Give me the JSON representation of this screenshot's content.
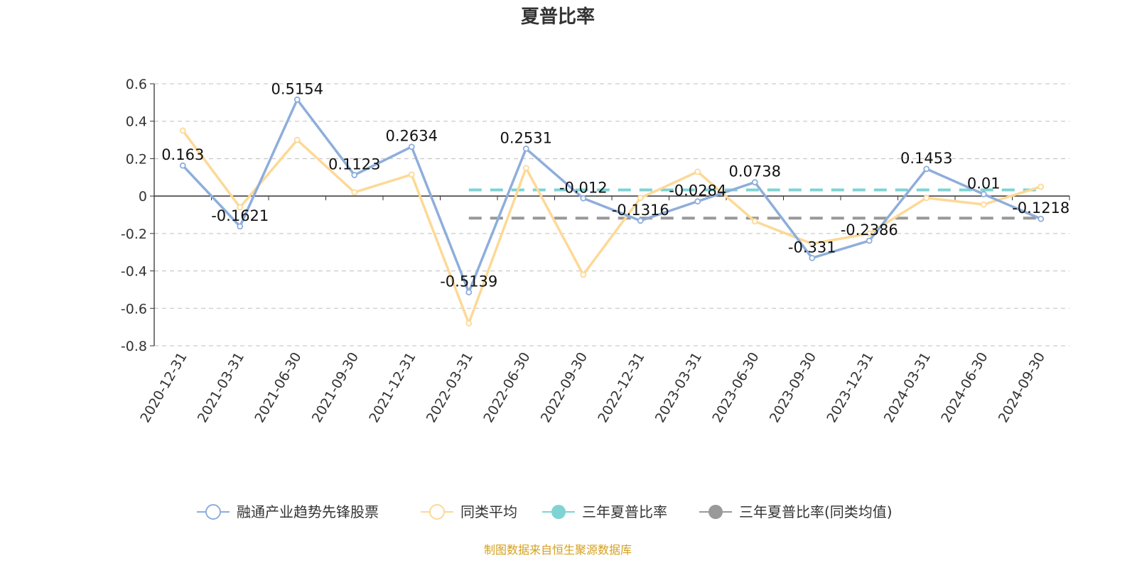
{
  "chart_data": {
    "type": "line",
    "title": "夏普比率",
    "categories": [
      "2020-12-31",
      "2021-03-31",
      "2021-06-30",
      "2021-09-30",
      "2021-12-31",
      "2022-03-31",
      "2022-06-30",
      "2022-09-30",
      "2022-12-31",
      "2023-03-31",
      "2023-06-30",
      "2023-09-30",
      "2023-12-31",
      "2024-03-31",
      "2024-06-30",
      "2024-09-30"
    ],
    "ylim": [
      -0.8,
      0.6
    ],
    "yticks": [
      "0.6",
      "0.4",
      "0.2",
      "0",
      "-0.2",
      "-0.4",
      "-0.6",
      "-0.8"
    ],
    "grid": true,
    "legend_position": "bottom",
    "series": [
      {
        "name": "融通产业趋势先锋股票",
        "color": "#8eaedb",
        "labels": true,
        "values": [
          0.163,
          -0.1621,
          0.5154,
          0.1123,
          0.2634,
          -0.5139,
          0.2531,
          -0.012,
          -0.1316,
          -0.0284,
          0.0738,
          -0.331,
          -0.2386,
          0.1453,
          0.01,
          -0.1218
        ]
      },
      {
        "name": "同类平均",
        "color": "#fdd996",
        "labels": false,
        "values": [
          0.35,
          -0.06,
          0.3,
          0.02,
          0.115,
          -0.68,
          0.15,
          -0.42,
          -0.01,
          0.13,
          -0.135,
          -0.255,
          -0.2,
          -0.01,
          -0.045,
          0.05
        ]
      },
      {
        "name": "三年夏普比率",
        "color": "#7fd3d3",
        "type": "dashed-line",
        "value": 0.033,
        "from": "2022-03-31",
        "to": "2024-09-30"
      },
      {
        "name": "三年夏普比率(同类均值)",
        "color": "#999999",
        "type": "dashed-line",
        "value": -0.118,
        "from": "2022-03-31",
        "to": "2024-09-30"
      }
    ],
    "source": "制图数据来自恒生聚源数据库",
    "source_color": "#d4a020"
  }
}
